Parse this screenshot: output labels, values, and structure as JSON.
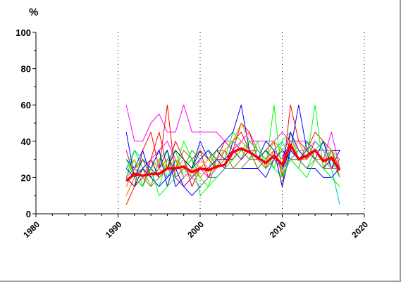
{
  "chart_data": {
    "type": "line",
    "ylabel": "%",
    "xlim": [
      1980,
      2020
    ],
    "ylim": [
      0,
      100
    ],
    "x_ticks": [
      1980,
      1990,
      2000,
      2010,
      2020
    ],
    "x_tick_labels": [
      "1980",
      "1990",
      "2000",
      "2010",
      "2020"
    ],
    "y_ticks": [
      0,
      20,
      40,
      60,
      80,
      100
    ],
    "y_tick_labels": [
      "0",
      "20",
      "40",
      "60",
      "80",
      "100"
    ],
    "vertical_gridlines": "dotted at 1990, 2000, 2010, 2020",
    "grid": true,
    "x": [
      1991,
      1992,
      1993,
      1994,
      1995,
      1996,
      1997,
      1998,
      1999,
      2000,
      2001,
      2002,
      2003,
      2004,
      2005,
      2006,
      2007,
      2008,
      2009,
      2010,
      2011,
      2012,
      2013,
      2014,
      2015,
      2016,
      2017
    ],
    "series": [
      {
        "color": "#ff0000",
        "bold": true,
        "values": [
          18,
          22,
          21,
          22,
          22,
          25,
          25,
          26,
          23,
          25,
          24,
          26,
          27,
          34,
          36,
          34,
          31,
          28,
          32,
          27,
          38,
          30,
          32,
          35,
          29,
          31,
          24
        ]
      },
      {
        "color": "#ff00ff",
        "values": [
          60,
          40,
          40,
          50,
          55,
          45,
          45,
          60,
          45,
          45,
          45,
          45,
          40,
          40,
          50,
          40,
          40,
          40,
          40,
          45,
          40,
          40,
          40,
          35,
          35,
          35,
          35
        ]
      },
      {
        "color": "#ff00ff",
        "values": [
          30,
          25,
          20,
          30,
          35,
          40,
          30,
          25,
          20,
          25,
          20,
          25,
          30,
          35,
          40,
          45,
          35,
          30,
          35,
          30,
          40,
          35,
          30,
          35,
          30,
          45,
          25
        ]
      },
      {
        "color": "#ff0000",
        "values": [
          5,
          15,
          35,
          45,
          25,
          60,
          20,
          25,
          30,
          35,
          20,
          30,
          40,
          35,
          50,
          45,
          30,
          35,
          40,
          20,
          60,
          40,
          35,
          45,
          40,
          35,
          20
        ]
      },
      {
        "color": "#ff0000",
        "values": [
          35,
          20,
          15,
          30,
          45,
          25,
          40,
          30,
          15,
          25,
          30,
          25,
          35,
          40,
          45,
          35,
          25,
          30,
          35,
          15,
          45,
          35,
          30,
          40,
          35,
          25,
          30
        ]
      },
      {
        "color": "#00ff00",
        "values": [
          20,
          35,
          25,
          20,
          15,
          30,
          35,
          20,
          25,
          20,
          15,
          30,
          35,
          40,
          35,
          30,
          40,
          25,
          60,
          20,
          35,
          30,
          30,
          60,
          25,
          20,
          15
        ]
      },
      {
        "color": "#00ff00",
        "values": [
          25,
          30,
          15,
          25,
          35,
          20,
          25,
          40,
          30,
          20,
          25,
          35,
          30,
          45,
          40,
          35,
          30,
          35,
          25,
          40,
          45,
          30,
          25,
          35,
          40,
          30,
          20
        ]
      },
      {
        "color": "#00c000",
        "values": [
          10,
          20,
          25,
          15,
          30,
          35,
          20,
          25,
          35,
          30,
          35,
          25,
          30,
          35,
          30,
          40,
          35,
          30,
          40,
          35,
          30,
          25,
          40,
          30,
          25,
          35,
          30
        ]
      },
      {
        "color": "#0000ff",
        "values": [
          45,
          20,
          30,
          25,
          35,
          15,
          30,
          20,
          25,
          40,
          30,
          35,
          40,
          45,
          60,
          35,
          30,
          40,
          35,
          15,
          35,
          60,
          35,
          30,
          40,
          25,
          35
        ]
      },
      {
        "color": "#0000ff",
        "values": [
          30,
          25,
          35,
          20,
          25,
          35,
          15,
          20,
          25,
          30,
          35,
          30,
          25,
          40,
          35,
          35,
          35,
          30,
          35,
          30,
          45,
          35,
          30,
          35,
          30,
          35,
          35
        ]
      },
      {
        "color": "#000090",
        "values": [
          20,
          15,
          25,
          30,
          20,
          25,
          35,
          30,
          25,
          35,
          30,
          35,
          30,
          30,
          35,
          30,
          30,
          35,
          30,
          35,
          30,
          35,
          35,
          30,
          30,
          35,
          35
        ]
      },
      {
        "color": "#00c0c0",
        "values": [
          25,
          35,
          30,
          20,
          25,
          20,
          30,
          25,
          30,
          25,
          25,
          30,
          35,
          40,
          35,
          30,
          35,
          30,
          35,
          40,
          30,
          35,
          35,
          40,
          35,
          25,
          5
        ]
      },
      {
        "color": "#808000",
        "values": [
          15,
          25,
          30,
          20,
          25,
          30,
          25,
          35,
          30,
          35,
          30,
          35,
          35,
          25,
          30,
          35,
          25,
          30,
          35,
          30,
          35,
          30,
          30,
          35,
          30,
          35,
          25
        ]
      },
      {
        "color": "#c0c000",
        "values": [
          20,
          30,
          20,
          25,
          30,
          25,
          30,
          25,
          30,
          25,
          30,
          30,
          35,
          40,
          50,
          40,
          35,
          30,
          40,
          35,
          40,
          35,
          35,
          30,
          30,
          35,
          30
        ]
      },
      {
        "color": "#ff8000",
        "values": [
          10,
          20,
          25,
          15,
          20,
          25,
          30,
          20,
          25,
          20,
          25,
          25,
          30,
          35,
          35,
          30,
          30,
          25,
          35,
          30,
          35,
          30,
          30,
          35,
          30,
          25,
          25
        ]
      },
      {
        "color": "#800080",
        "values": [
          20,
          15,
          20,
          25,
          20,
          25,
          20,
          15,
          20,
          25,
          25,
          30,
          30,
          35,
          30,
          35,
          30,
          25,
          30,
          25,
          30,
          30,
          35,
          30,
          25,
          30,
          25
        ]
      },
      {
        "color": "#ff6060",
        "values": [
          15,
          25,
          20,
          30,
          25,
          20,
          25,
          30,
          20,
          30,
          25,
          25,
          35,
          30,
          40,
          35,
          35,
          30,
          35,
          30,
          35,
          40,
          30,
          35,
          30,
          30,
          25
        ]
      },
      {
        "color": "#0000ff",
        "values": [
          25,
          20,
          25,
          20,
          15,
          20,
          25,
          15,
          10,
          15,
          20,
          20,
          25,
          25,
          25,
          25,
          25,
          20,
          30,
          25,
          35,
          30,
          25,
          25,
          20,
          20,
          25
        ]
      },
      {
        "color": "#00ff00",
        "values": [
          30,
          20,
          15,
          25,
          10,
          15,
          20,
          25,
          30,
          10,
          15,
          20,
          25,
          30,
          35,
          40,
          35,
          30,
          25,
          20,
          30,
          25,
          20,
          30,
          25,
          20,
          15
        ]
      },
      {
        "color": "#808080",
        "values": [
          20,
          25,
          20,
          15,
          20,
          25,
          20,
          25,
          20,
          15,
          20,
          20,
          25,
          25,
          25,
          30,
          30,
          25,
          30,
          25,
          30,
          30,
          25,
          30,
          25,
          25,
          25
        ]
      }
    ]
  }
}
